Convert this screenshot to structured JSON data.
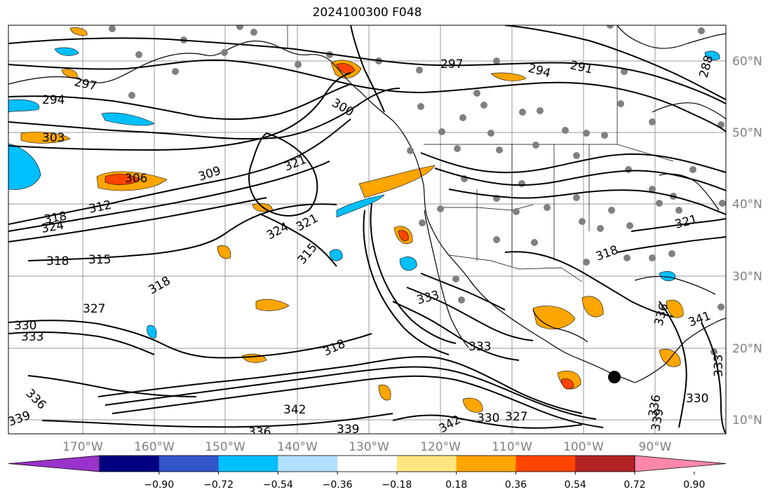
{
  "title": "2024100300 F048",
  "map": {
    "lon_labels": [
      "170°W",
      "160°W",
      "150°W",
      "140°W",
      "130°W",
      "120°W",
      "110°W",
      "100°W",
      "90°W"
    ],
    "lat_labels": [
      "60°N",
      "50°N",
      "40°N",
      "30°N",
      "20°N",
      "10°N"
    ],
    "contour_labels": [
      "297",
      "294",
      "291",
      "288",
      "297",
      "294",
      "303",
      "300",
      "306",
      "309",
      "312",
      "318",
      "324",
      "321",
      "324",
      "321",
      "315",
      "318",
      "315",
      "318",
      "327",
      "330",
      "333",
      "336",
      "339",
      "318",
      "333",
      "333",
      "342",
      "339",
      "336",
      "342",
      "330",
      "327",
      "321",
      "318",
      "336",
      "341",
      "330",
      "333",
      "336",
      "339"
    ]
  },
  "colorbar": {
    "colors": [
      "#9933cc",
      "#000080",
      "#3355cc",
      "#00bfff",
      "#b0e0ff",
      "#ffffff",
      "#ffe680",
      "#ffa500",
      "#ff4500",
      "#b22222",
      "#ff88aa"
    ],
    "tick_labels": [
      "−0.90",
      "−0.72",
      "−0.54",
      "−0.36",
      "−0.18",
      "0.18",
      "0.36",
      "0.54",
      "0.72",
      "0.90"
    ]
  }
}
